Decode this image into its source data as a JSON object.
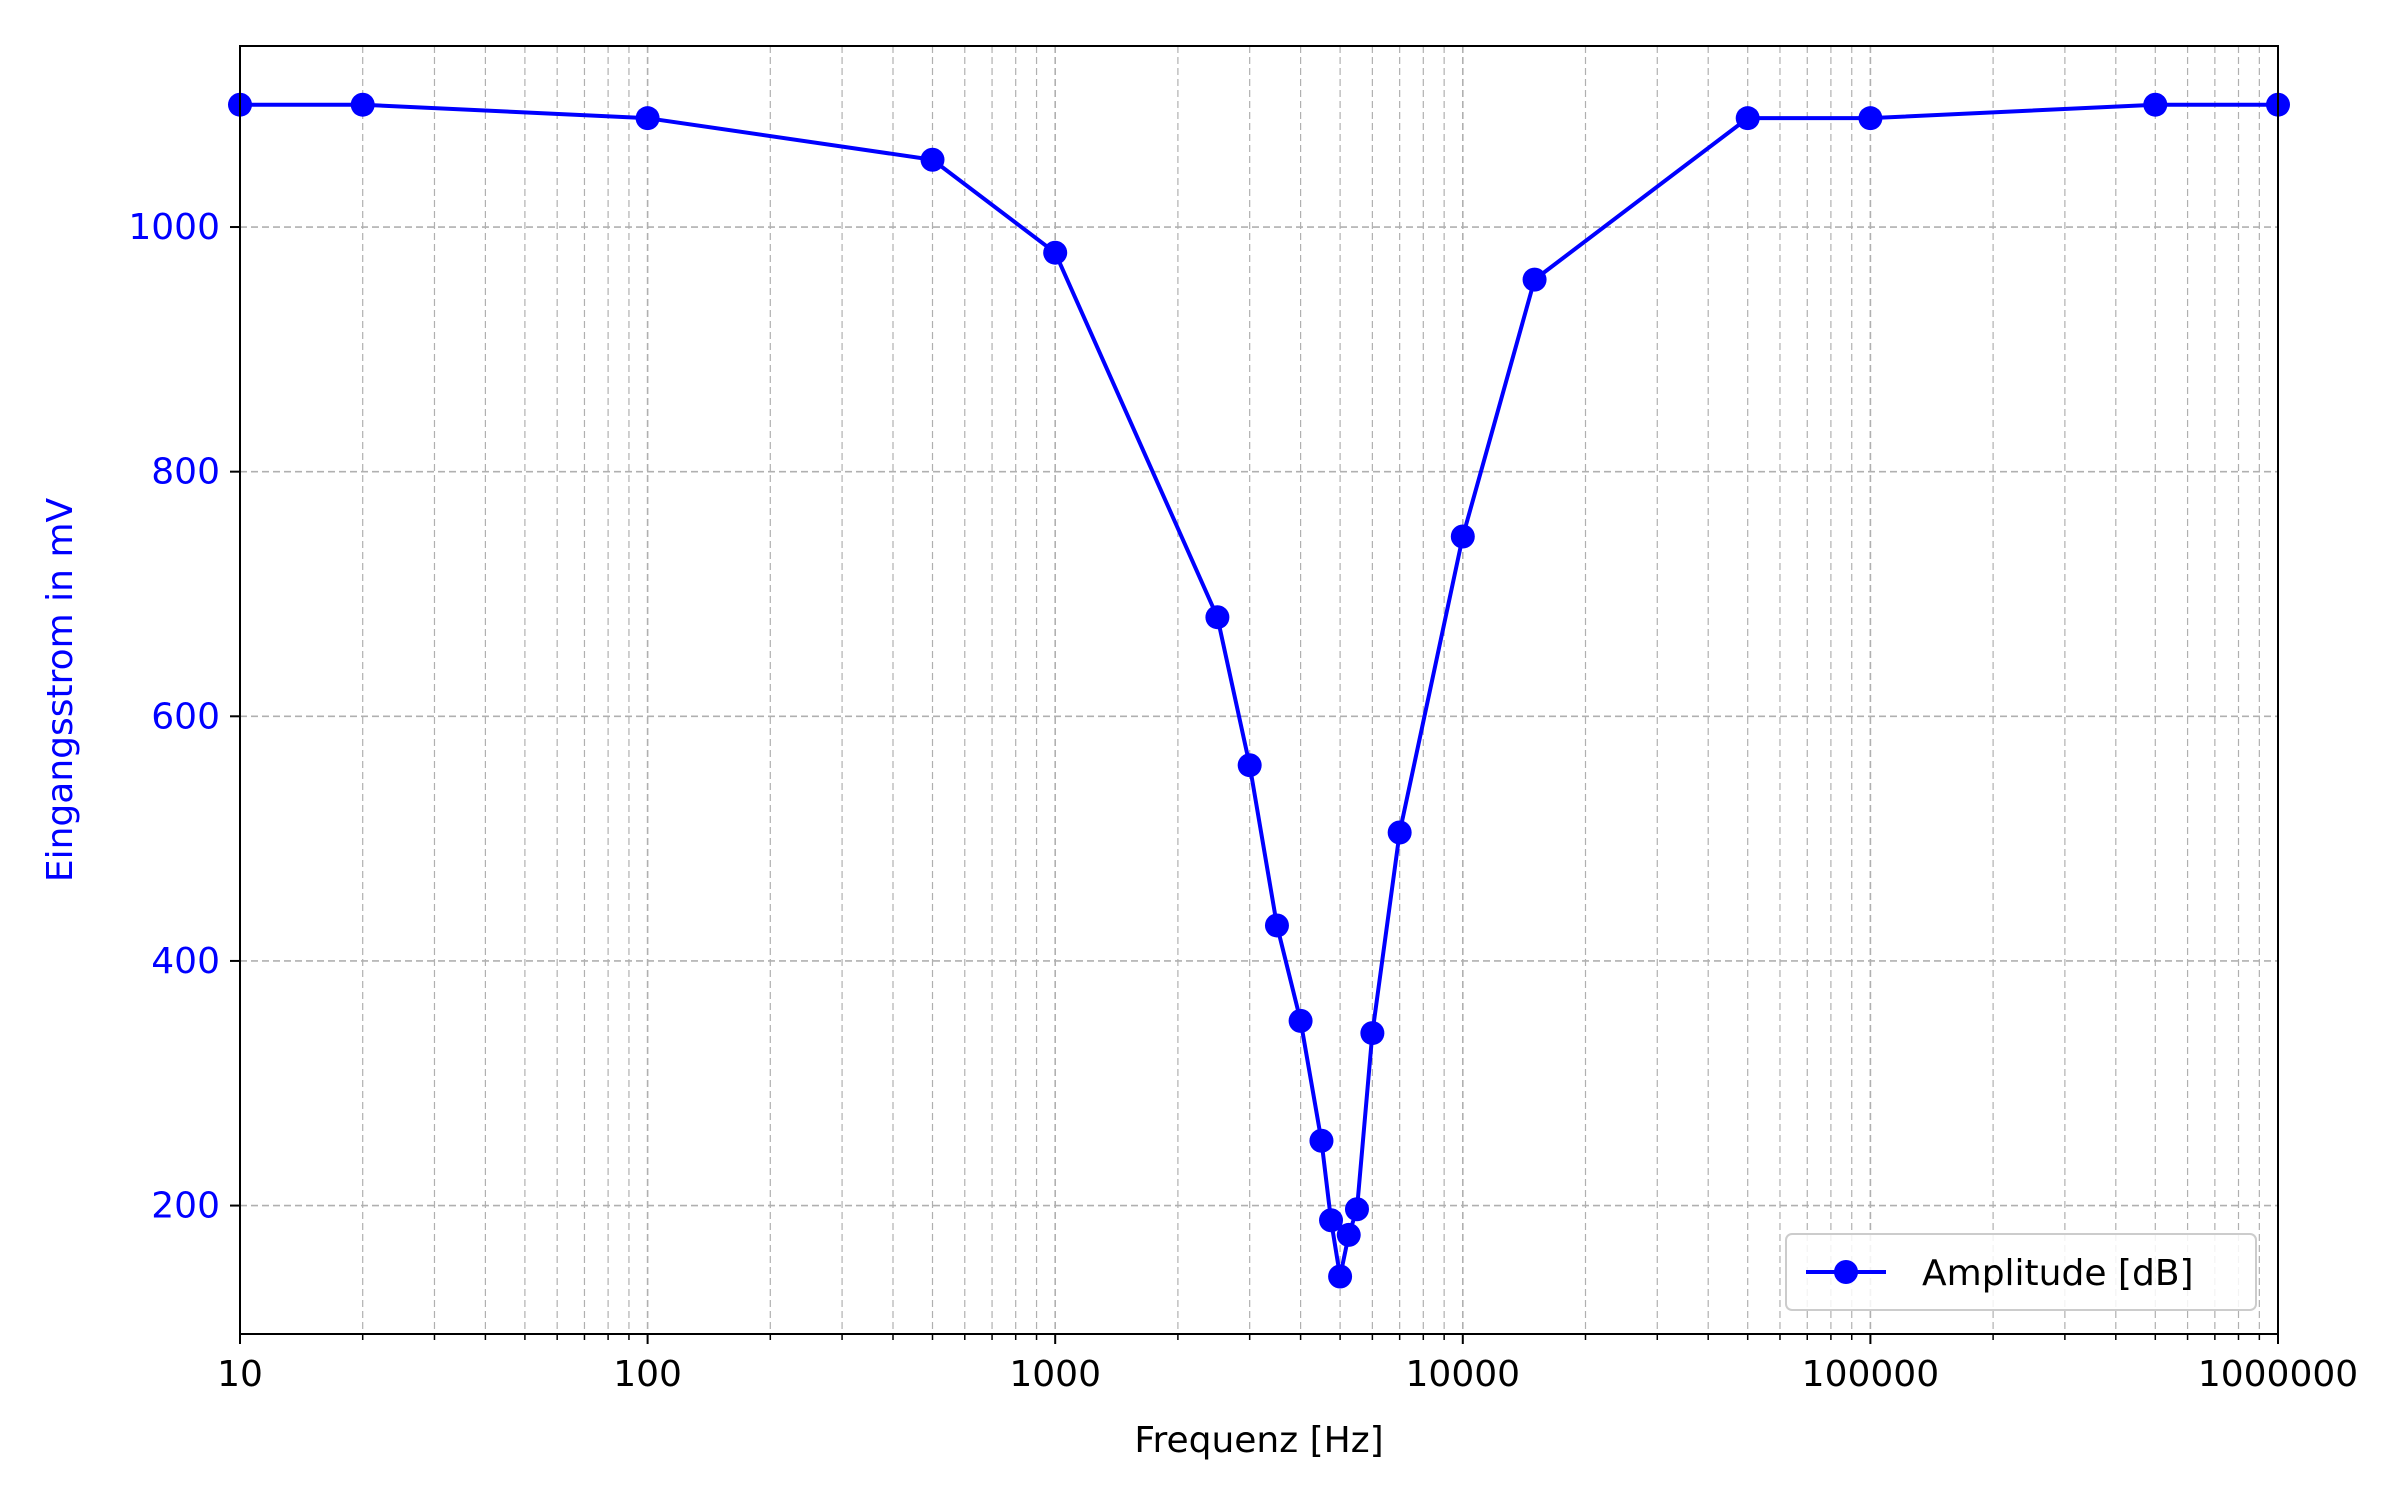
{
  "chart_data": {
    "type": "line",
    "title": "",
    "xlabel": "Frequenz [Hz]",
    "ylabel": "Eingangsstrom in mV",
    "xscale": "log",
    "xlim": [
      10,
      1000000
    ],
    "ylim": [
      95,
      1148
    ],
    "x_ticks": [
      10,
      100,
      1000,
      10000,
      100000,
      1000000
    ],
    "x_tick_labels": [
      "10",
      "100",
      "1000",
      "10000",
      "100000",
      "1000000"
    ],
    "y_ticks": [
      200,
      400,
      600,
      800,
      1000
    ],
    "y_tick_labels": [
      "200",
      "400",
      "600",
      "800",
      "1000"
    ],
    "grid": true,
    "legend_position": "lower-right",
    "series": [
      {
        "name": "Amplitude [dB]",
        "color": "#0000ff",
        "marker": "circle",
        "x": [
          10,
          20,
          100,
          500,
          1000,
          2500,
          3000,
          3500,
          4000,
          4500,
          4750,
          5000,
          5250,
          5500,
          6000,
          7000,
          10000,
          15000,
          50000,
          100000,
          500000,
          1000000
        ],
        "y": [
          1100,
          1100,
          1089,
          1055,
          979,
          681,
          560,
          429,
          351,
          253,
          188,
          142,
          176,
          197,
          341,
          505,
          747,
          957,
          1089,
          1089,
          1100,
          1100
        ]
      }
    ]
  },
  "colors": {
    "series": "#0000ff",
    "ytick_label": "#0000ff",
    "ylabel": "#0000ff",
    "grid": "#b0b0b0",
    "axis": "#000000"
  }
}
